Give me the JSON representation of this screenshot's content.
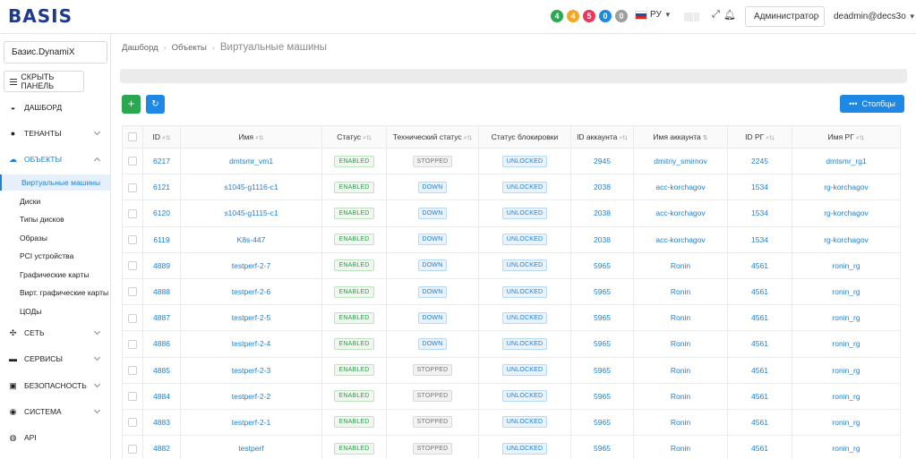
{
  "header": {
    "logo": "BASIS",
    "counters": [
      {
        "value": "4",
        "color": "#2aa84f"
      },
      {
        "value": "4",
        "color": "#f5a623"
      },
      {
        "value": "5",
        "color": "#e8365d"
      },
      {
        "value": "0",
        "color": "#1e88e5"
      },
      {
        "value": "0",
        "color": "#9e9e9e"
      }
    ],
    "language": "РУ",
    "role": "Администратор",
    "user": "deadmin@decs3o"
  },
  "sidebar": {
    "org": "Базис.DynamiX",
    "hide_panel": "СКРЫТЬ ПАНЕЛЬ",
    "items_top": [
      {
        "label": "ДАШБОРД",
        "icon": "dashboard-icon"
      },
      {
        "label": "ТЕНАНТЫ",
        "icon": "user-icon"
      },
      {
        "label": "ОБЪЕКТЫ",
        "icon": "cloud-icon"
      }
    ],
    "sub_items": [
      "Виртуальные машины",
      "Диски",
      "Типы дисков",
      "Образы",
      "PCI устройства",
      "Графические карты",
      "Вирт. графические карты",
      "ЦОДы"
    ],
    "items_bottom": [
      {
        "label": "СЕТЬ",
        "icon": "network-icon"
      },
      {
        "label": "СЕРВИСЫ",
        "icon": "services-icon"
      },
      {
        "label": "БЕЗОПАСНОСТЬ",
        "icon": "lock-icon"
      },
      {
        "label": "СИСТЕМА",
        "icon": "system-icon"
      },
      {
        "label": "API",
        "icon": "api-icon"
      }
    ]
  },
  "breadcrumb": {
    "home": "Дашборд",
    "parent": "Объекты",
    "current": "Виртуальные машины"
  },
  "toolbar": {
    "columns_label": "Столбцы"
  },
  "table": {
    "headers": [
      "ID",
      "Имя",
      "Статус",
      "Технический статус",
      "Статус блокировки",
      "ID аккаунта",
      "Имя аккаунта",
      "ID РГ",
      "Имя РГ"
    ],
    "rows": [
      {
        "id": "6217",
        "name": "dmtsmr_vm1",
        "status": "ENABLED",
        "tech": "STOPPED",
        "lock": "UNLOCKED",
        "acc_id": "2945",
        "acc_name": "dmitriy_smirnov",
        "rg_id": "2245",
        "rg_name": "dmtsmr_rg1"
      },
      {
        "id": "6121",
        "name": "s1045-g1116-c1",
        "status": "ENABLED",
        "tech": "DOWN",
        "lock": "UNLOCKED",
        "acc_id": "2038",
        "acc_name": "acc-korchagov",
        "rg_id": "1534",
        "rg_name": "rg-korchagov"
      },
      {
        "id": "6120",
        "name": "s1045-g1115-c1",
        "status": "ENABLED",
        "tech": "DOWN",
        "lock": "UNLOCKED",
        "acc_id": "2038",
        "acc_name": "acc-korchagov",
        "rg_id": "1534",
        "rg_name": "rg-korchagov"
      },
      {
        "id": "6119",
        "name": "K8s-447",
        "status": "ENABLED",
        "tech": "DOWN",
        "lock": "UNLOCKED",
        "acc_id": "2038",
        "acc_name": "acc-korchagov",
        "rg_id": "1534",
        "rg_name": "rg-korchagov"
      },
      {
        "id": "4889",
        "name": "testperf-2-7",
        "status": "ENABLED",
        "tech": "DOWN",
        "lock": "UNLOCKED",
        "acc_id": "5965",
        "acc_name": "Ronin",
        "rg_id": "4561",
        "rg_name": "ronin_rg"
      },
      {
        "id": "4888",
        "name": "testperf-2-6",
        "status": "ENABLED",
        "tech": "DOWN",
        "lock": "UNLOCKED",
        "acc_id": "5965",
        "acc_name": "Ronin",
        "rg_id": "4561",
        "rg_name": "ronin_rg"
      },
      {
        "id": "4887",
        "name": "testperf-2-5",
        "status": "ENABLED",
        "tech": "DOWN",
        "lock": "UNLOCKED",
        "acc_id": "5965",
        "acc_name": "Ronin",
        "rg_id": "4561",
        "rg_name": "ronin_rg"
      },
      {
        "id": "4886",
        "name": "testperf-2-4",
        "status": "ENABLED",
        "tech": "DOWN",
        "lock": "UNLOCKED",
        "acc_id": "5965",
        "acc_name": "Ronin",
        "rg_id": "4561",
        "rg_name": "ronin_rg"
      },
      {
        "id": "4885",
        "name": "testperf-2-3",
        "status": "ENABLED",
        "tech": "STOPPED",
        "lock": "UNLOCKED",
        "acc_id": "5965",
        "acc_name": "Ronin",
        "rg_id": "4561",
        "rg_name": "ronin_rg"
      },
      {
        "id": "4884",
        "name": "testperf-2-2",
        "status": "ENABLED",
        "tech": "STOPPED",
        "lock": "UNLOCKED",
        "acc_id": "5965",
        "acc_name": "Ronin",
        "rg_id": "4561",
        "rg_name": "ronin_rg"
      },
      {
        "id": "4883",
        "name": "testperf-2-1",
        "status": "ENABLED",
        "tech": "STOPPED",
        "lock": "UNLOCKED",
        "acc_id": "5965",
        "acc_name": "Ronin",
        "rg_id": "4561",
        "rg_name": "ronin_rg"
      },
      {
        "id": "4882",
        "name": "testperf",
        "status": "ENABLED",
        "tech": "STOPPED",
        "lock": "UNLOCKED",
        "acc_id": "5965",
        "acc_name": "Ronin",
        "rg_id": "4561",
        "rg_name": "ronin_rg"
      }
    ]
  }
}
